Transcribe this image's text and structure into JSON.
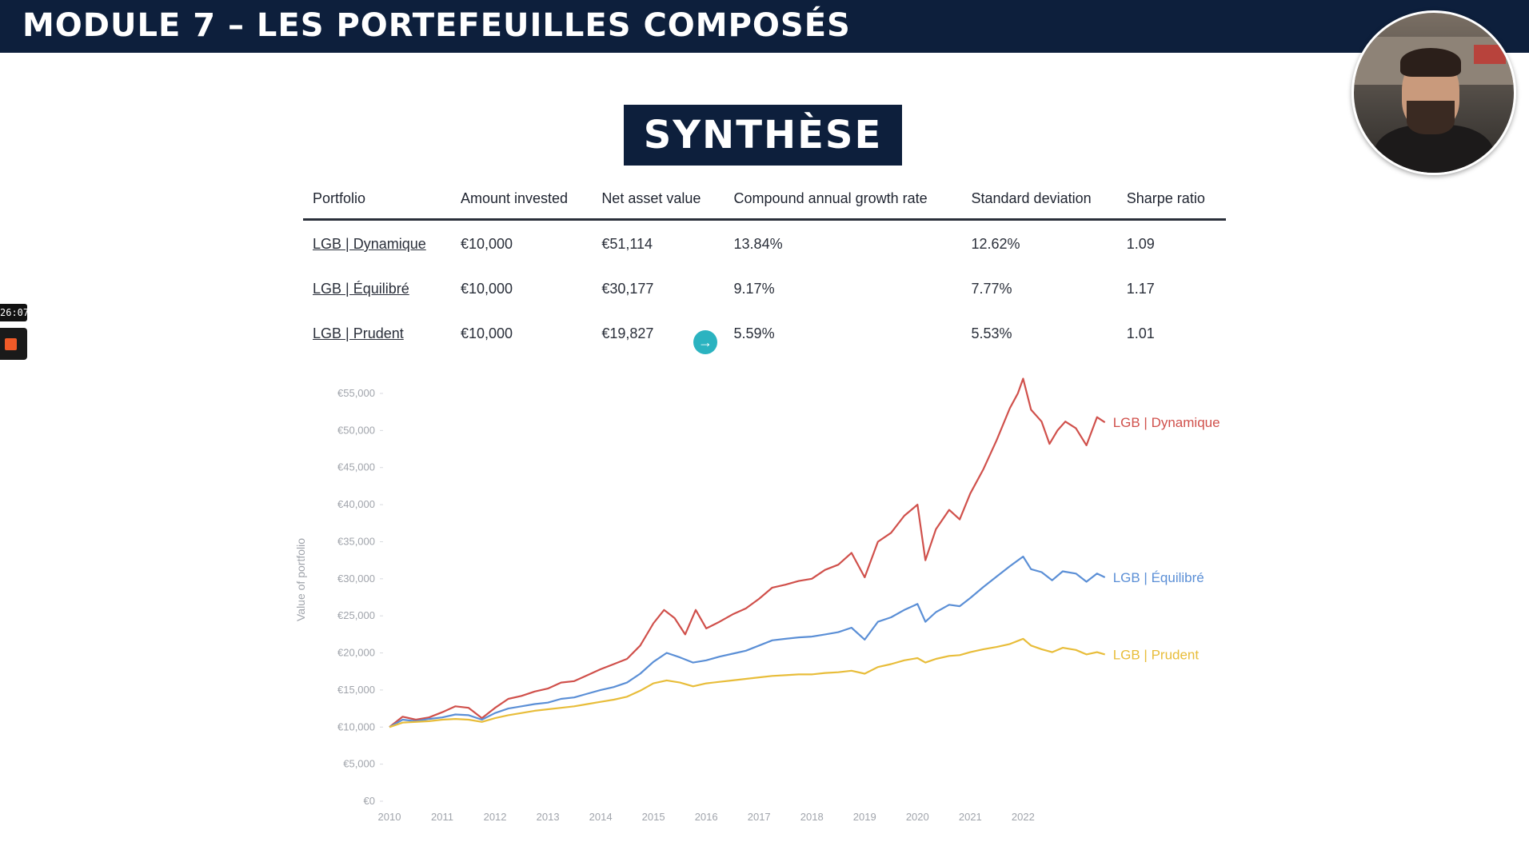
{
  "header": {
    "title": "MODULE 7 – LES PORTEFEUILLES COMPOSÉS"
  },
  "recorder": {
    "time": "26:07"
  },
  "slide": {
    "title": "SYNTHÈSE"
  },
  "table": {
    "columns": [
      "Portfolio",
      "Amount invested",
      "Net asset value",
      "Compound annual growth rate",
      "Standard deviation",
      "Sharpe ratio"
    ],
    "rows": [
      [
        "LGB | Dynamique",
        "€10,000",
        "€51,114",
        "13.84%",
        "12.62%",
        "1.09"
      ],
      [
        "LGB | Équilibré",
        "€10,000",
        "€30,177",
        "9.17%",
        "7.77%",
        "1.17"
      ],
      [
        "LGB | Prudent",
        "€10,000",
        "€19,827",
        "5.59%",
        "5.53%",
        "1.01"
      ]
    ]
  },
  "chart_data": {
    "type": "line",
    "ylabel": "Value of portfolio",
    "xlabel": "",
    "ylim": [
      0,
      55000
    ],
    "xlim": [
      2010,
      2023.6
    ],
    "y_ticks": [
      "€0",
      "€5,000",
      "€10,000",
      "€15,000",
      "€20,000",
      "€25,000",
      "€30,000",
      "€35,000",
      "€40,000",
      "€45,000",
      "€50,000",
      "€55,000"
    ],
    "x_ticks": [
      "2010",
      "2011",
      "2012",
      "2013",
      "2014",
      "2015",
      "2016",
      "2017",
      "2018",
      "2019",
      "2020",
      "2021",
      "2022"
    ],
    "legend": "inline-right",
    "series": [
      {
        "name": "LGB | Dynamique",
        "color": "#d0504b",
        "points": [
          [
            2010,
            10000
          ],
          [
            2010.25,
            11400
          ],
          [
            2010.5,
            11000
          ],
          [
            2010.75,
            11300
          ],
          [
            2011,
            12000
          ],
          [
            2011.25,
            12800
          ],
          [
            2011.5,
            12600
          ],
          [
            2011.75,
            11200
          ],
          [
            2012,
            12600
          ],
          [
            2012.25,
            13800
          ],
          [
            2012.5,
            14200
          ],
          [
            2012.75,
            14800
          ],
          [
            2013,
            15200
          ],
          [
            2013.25,
            16000
          ],
          [
            2013.5,
            16200
          ],
          [
            2013.75,
            17000
          ],
          [
            2014,
            17800
          ],
          [
            2014.25,
            18500
          ],
          [
            2014.5,
            19200
          ],
          [
            2014.75,
            21000
          ],
          [
            2015,
            24000
          ],
          [
            2015.2,
            25800
          ],
          [
            2015.4,
            24700
          ],
          [
            2015.6,
            22500
          ],
          [
            2015.8,
            25800
          ],
          [
            2016,
            23300
          ],
          [
            2016.25,
            24200
          ],
          [
            2016.5,
            25200
          ],
          [
            2016.75,
            26000
          ],
          [
            2017,
            27300
          ],
          [
            2017.25,
            28800
          ],
          [
            2017.5,
            29200
          ],
          [
            2017.75,
            29700
          ],
          [
            2018,
            30000
          ],
          [
            2018.25,
            31200
          ],
          [
            2018.5,
            31900
          ],
          [
            2018.75,
            33500
          ],
          [
            2019,
            30200
          ],
          [
            2019.25,
            35000
          ],
          [
            2019.5,
            36200
          ],
          [
            2019.75,
            38500
          ],
          [
            2020,
            40000
          ],
          [
            2020.15,
            32500
          ],
          [
            2020.35,
            36700
          ],
          [
            2020.6,
            39300
          ],
          [
            2020.8,
            38000
          ],
          [
            2021,
            41500
          ],
          [
            2021.25,
            44800
          ],
          [
            2021.5,
            48700
          ],
          [
            2021.75,
            53000
          ],
          [
            2021.9,
            55000
          ],
          [
            2022.0,
            57000
          ],
          [
            2022.15,
            52800
          ],
          [
            2022.35,
            51200
          ],
          [
            2022.5,
            48200
          ],
          [
            2022.65,
            50000
          ],
          [
            2022.8,
            51200
          ],
          [
            2023.0,
            50300
          ],
          [
            2023.2,
            48000
          ],
          [
            2023.4,
            51800
          ],
          [
            2023.55,
            51100
          ]
        ]
      },
      {
        "name": "LGB | Équilibré",
        "color": "#5b8fd6",
        "points": [
          [
            2010,
            10000
          ],
          [
            2010.25,
            11000
          ],
          [
            2010.5,
            10800
          ],
          [
            2010.75,
            11100
          ],
          [
            2011,
            11300
          ],
          [
            2011.25,
            11700
          ],
          [
            2011.5,
            11600
          ],
          [
            2011.75,
            11000
          ],
          [
            2012,
            11900
          ],
          [
            2012.25,
            12500
          ],
          [
            2012.5,
            12800
          ],
          [
            2012.75,
            13100
          ],
          [
            2013,
            13300
          ],
          [
            2013.25,
            13800
          ],
          [
            2013.5,
            14000
          ],
          [
            2013.75,
            14500
          ],
          [
            2014,
            15000
          ],
          [
            2014.25,
            15400
          ],
          [
            2014.5,
            16000
          ],
          [
            2014.75,
            17200
          ],
          [
            2015,
            18800
          ],
          [
            2015.25,
            20000
          ],
          [
            2015.5,
            19400
          ],
          [
            2015.75,
            18700
          ],
          [
            2016,
            19000
          ],
          [
            2016.25,
            19500
          ],
          [
            2016.5,
            19900
          ],
          [
            2016.75,
            20300
          ],
          [
            2017,
            21000
          ],
          [
            2017.25,
            21700
          ],
          [
            2017.5,
            21900
          ],
          [
            2017.75,
            22100
          ],
          [
            2018,
            22200
          ],
          [
            2018.25,
            22500
          ],
          [
            2018.5,
            22800
          ],
          [
            2018.75,
            23400
          ],
          [
            2019,
            21800
          ],
          [
            2019.25,
            24200
          ],
          [
            2019.5,
            24800
          ],
          [
            2019.75,
            25800
          ],
          [
            2020,
            26600
          ],
          [
            2020.15,
            24200
          ],
          [
            2020.35,
            25500
          ],
          [
            2020.6,
            26500
          ],
          [
            2020.8,
            26300
          ],
          [
            2021,
            27400
          ],
          [
            2021.25,
            28900
          ],
          [
            2021.5,
            30300
          ],
          [
            2021.75,
            31700
          ],
          [
            2022.0,
            33000
          ],
          [
            2022.15,
            31300
          ],
          [
            2022.35,
            30900
          ],
          [
            2022.55,
            29800
          ],
          [
            2022.75,
            31000
          ],
          [
            2023.0,
            30700
          ],
          [
            2023.2,
            29600
          ],
          [
            2023.4,
            30700
          ],
          [
            2023.55,
            30200
          ]
        ]
      },
      {
        "name": "LGB | Prudent",
        "color": "#e8bd3a",
        "points": [
          [
            2010,
            10000
          ],
          [
            2010.25,
            10600
          ],
          [
            2010.5,
            10700
          ],
          [
            2010.75,
            10800
          ],
          [
            2011,
            11000
          ],
          [
            2011.25,
            11100
          ],
          [
            2011.5,
            11000
          ],
          [
            2011.75,
            10700
          ],
          [
            2012,
            11200
          ],
          [
            2012.25,
            11600
          ],
          [
            2012.5,
            11900
          ],
          [
            2012.75,
            12200
          ],
          [
            2013,
            12400
          ],
          [
            2013.25,
            12600
          ],
          [
            2013.5,
            12800
          ],
          [
            2013.75,
            13100
          ],
          [
            2014,
            13400
          ],
          [
            2014.25,
            13700
          ],
          [
            2014.5,
            14100
          ],
          [
            2014.75,
            14900
          ],
          [
            2015,
            15900
          ],
          [
            2015.25,
            16300
          ],
          [
            2015.5,
            16000
          ],
          [
            2015.75,
            15500
          ],
          [
            2016,
            15900
          ],
          [
            2016.25,
            16100
          ],
          [
            2016.5,
            16300
          ],
          [
            2016.75,
            16500
          ],
          [
            2017,
            16700
          ],
          [
            2017.25,
            16900
          ],
          [
            2017.5,
            17000
          ],
          [
            2017.75,
            17100
          ],
          [
            2018,
            17100
          ],
          [
            2018.25,
            17300
          ],
          [
            2018.5,
            17400
          ],
          [
            2018.75,
            17600
          ],
          [
            2019,
            17200
          ],
          [
            2019.25,
            18100
          ],
          [
            2019.5,
            18500
          ],
          [
            2019.75,
            19000
          ],
          [
            2020,
            19300
          ],
          [
            2020.15,
            18700
          ],
          [
            2020.35,
            19200
          ],
          [
            2020.6,
            19600
          ],
          [
            2020.8,
            19700
          ],
          [
            2021,
            20100
          ],
          [
            2021.25,
            20500
          ],
          [
            2021.5,
            20800
          ],
          [
            2021.75,
            21200
          ],
          [
            2022.0,
            21900
          ],
          [
            2022.15,
            21000
          ],
          [
            2022.35,
            20500
          ],
          [
            2022.55,
            20100
          ],
          [
            2022.75,
            20700
          ],
          [
            2023.0,
            20400
          ],
          [
            2023.2,
            19800
          ],
          [
            2023.4,
            20100
          ],
          [
            2023.55,
            19800
          ]
        ]
      }
    ]
  }
}
